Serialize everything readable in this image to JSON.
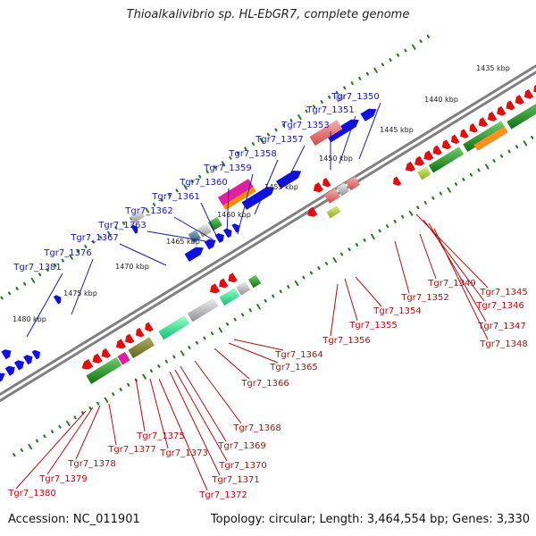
{
  "title": "Thioalkalivibrio sp. HL-EbGR7, complete genome",
  "footer": {
    "accession": "Accession: NC_011901",
    "stats": "Topology: circular; Length: 3,464,554 bp; Genes: 3,330"
  },
  "scale_labels": [
    "1435 kbp",
    "1440 kbp",
    "1445 kbp",
    "1450 kbp",
    "1455 kbp",
    "1460 kbp",
    "1465 kbp",
    "1470 kbp",
    "1475 kbp",
    "1480 kbp"
  ],
  "upper_gene_labels": [
    "Tgr7_1350",
    "Tgr7_1351",
    "Tgr7_1353",
    "Tgr7_1357",
    "Tgr7_1358",
    "Tgr7_1359",
    "Tgr7_1360",
    "Tgr7_1361",
    "Tgr7_1362",
    "Tgr7_1363",
    "Tgr7_1367",
    "Tgr7_1376",
    "Tgr7_1381"
  ],
  "lower_gene_labels": [
    "Tgr7_1345",
    "Tgr7_1346",
    "Tgr7_1347",
    "Tgr7_1348",
    "Tgr7_1349",
    "Tgr7_1352",
    "Tgr7_1354",
    "Tgr7_1355",
    "Tgr7_1356",
    "Tgr7_1364",
    "Tgr7_1365",
    "Tgr7_1366",
    "Tgr7_1368",
    "Tgr7_1369",
    "Tgr7_1370",
    "Tgr7_1371",
    "Tgr7_1372",
    "Tgr7_1373",
    "Tgr7_1375",
    "Tgr7_1377",
    "Tgr7_1378",
    "Tgr7_1379",
    "Tgr7_1380"
  ],
  "colors": {
    "forward_genes": "#1010e0",
    "reverse_genes": "#e01010",
    "upper_label_text": "#1a1aa0",
    "lower_label_text": "#b01010",
    "backbone": "#808080",
    "tick_marks": "#2a7a2a"
  }
}
